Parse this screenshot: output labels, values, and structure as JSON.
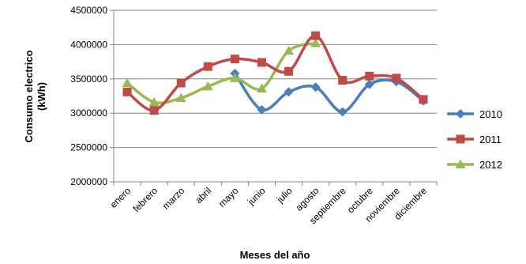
{
  "chart_data": {
    "type": "line",
    "title": "",
    "xlabel": "Meses del año",
    "ylabel_lines": [
      "Consumo electrico",
      "(kWh)"
    ],
    "ylim": [
      2000000,
      4500000
    ],
    "yticks": [
      2000000,
      2500000,
      3000000,
      3500000,
      4000000,
      4500000
    ],
    "categories": [
      "enero",
      "febrero",
      "marzo",
      "abril",
      "mayo",
      "junio",
      "julio",
      "agosto",
      "septiembre",
      "octubre",
      "noviembre",
      "diciembre"
    ],
    "grid": "horizontal",
    "legend": "right",
    "series": [
      {
        "name": "2010",
        "color": "#4a7ebb",
        "marker": "diamond",
        "values": [
          null,
          null,
          null,
          null,
          3580000,
          3050000,
          3310000,
          3380000,
          3020000,
          3420000,
          3460000,
          3180000
        ]
      },
      {
        "name": "2011",
        "color": "#be4b48",
        "marker": "square",
        "values": [
          3310000,
          3040000,
          3440000,
          3680000,
          3790000,
          3740000,
          3610000,
          4130000,
          3480000,
          3540000,
          3510000,
          3200000
        ]
      },
      {
        "name": "2012",
        "color": "#98b954",
        "marker": "triangle",
        "values": [
          3440000,
          3160000,
          3220000,
          3390000,
          3510000,
          3360000,
          3910000,
          4020000,
          null,
          null,
          null,
          null
        ]
      }
    ]
  }
}
